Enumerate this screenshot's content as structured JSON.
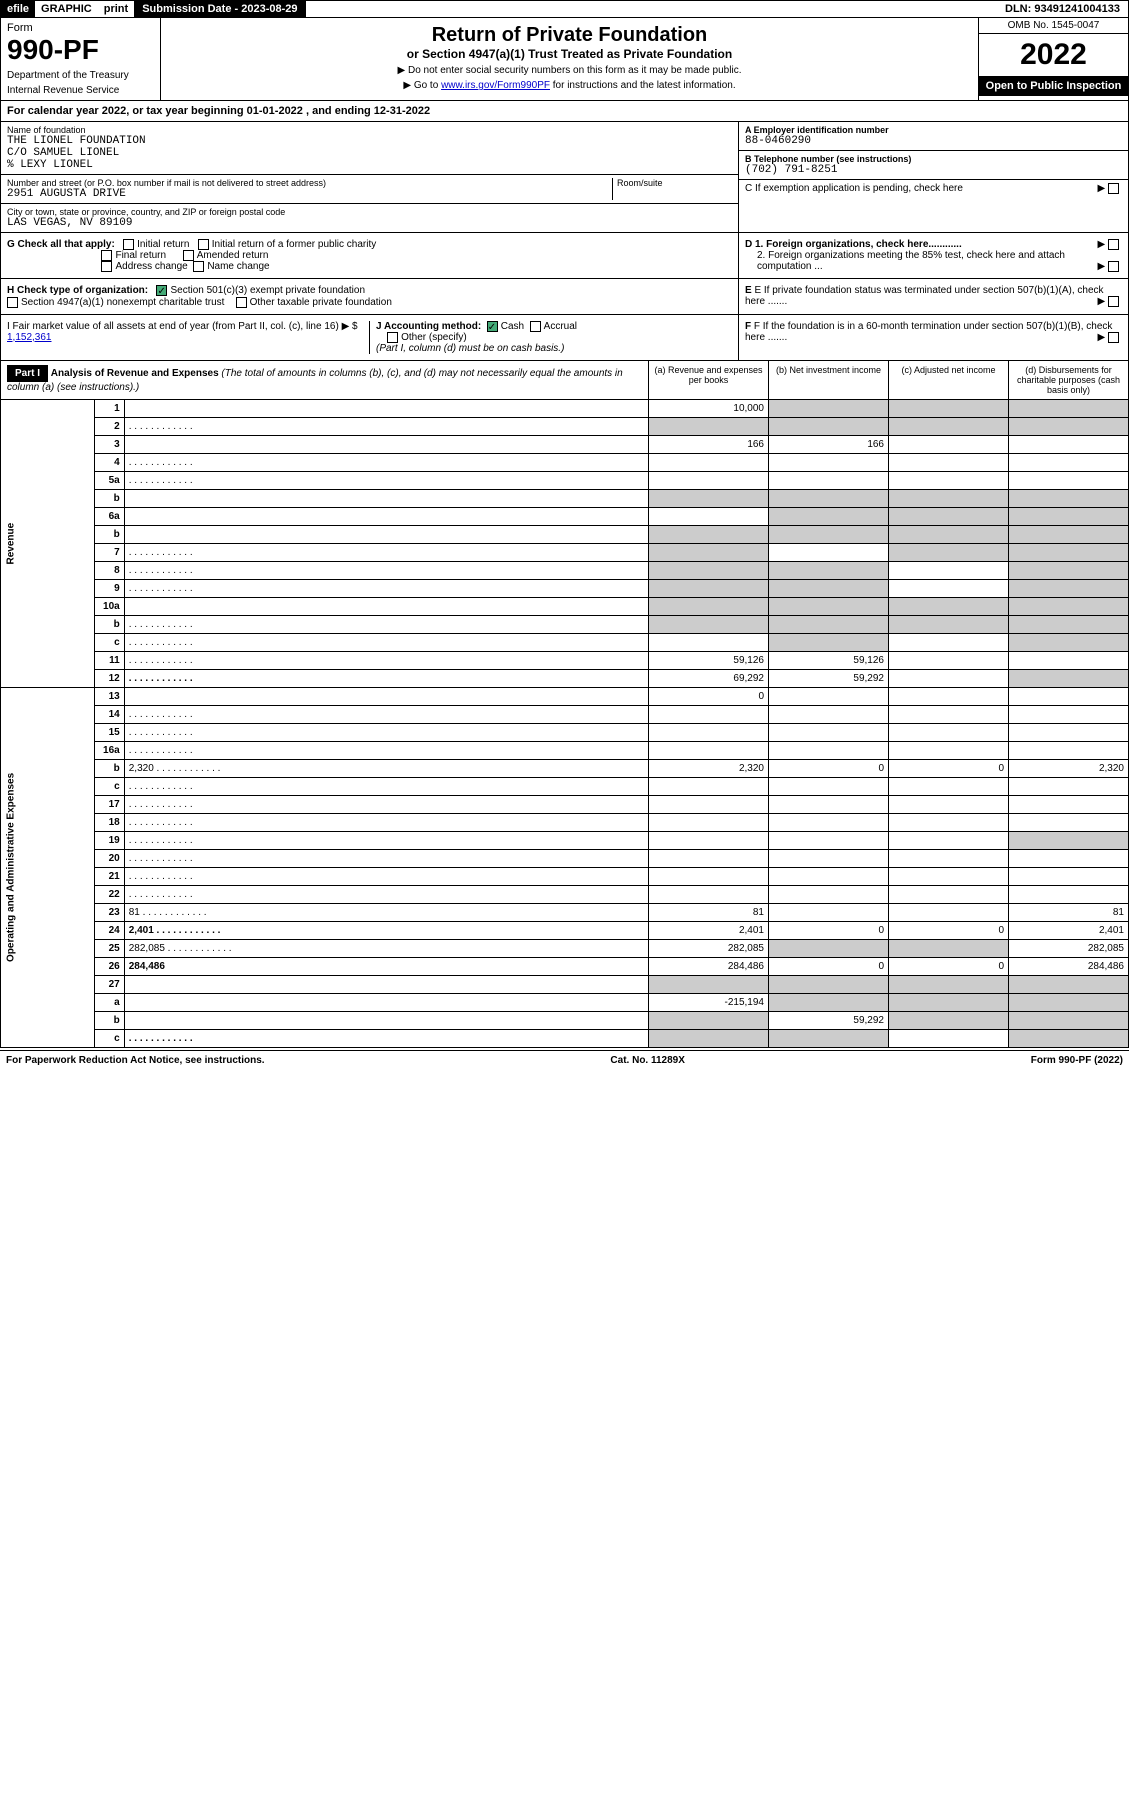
{
  "topbar": {
    "efile": "efile",
    "graphic": "GRAPHIC",
    "print": "print",
    "subdate_label": "Submission Date - 2023-08-29",
    "dln": "DLN: 93491241004133"
  },
  "header": {
    "form": "Form",
    "form_no": "990-PF",
    "dept": "Department of the Treasury",
    "irs": "Internal Revenue Service",
    "title": "Return of Private Foundation",
    "subtitle": "or Section 4947(a)(1) Trust Treated as Private Foundation",
    "note1": "▶ Do not enter social security numbers on this form as it may be made public.",
    "note2": "▶ Go to www.irs.gov/Form990PF for instructions and the latest information.",
    "omb": "OMB No. 1545-0047",
    "year": "2022",
    "open": "Open to Public Inspection"
  },
  "calyear": "For calendar year 2022, or tax year beginning 01-01-2022               , and ending 12-31-2022",
  "foundation": {
    "name_label": "Name of foundation",
    "name": "THE LIONEL FOUNDATION\nC/O SAMUEL LIONEL\n% LEXY LIONEL",
    "addr_label": "Number and street (or P.O. box number if mail is not delivered to street address)",
    "addr": "2951 AUGUSTA DRIVE",
    "room_label": "Room/suite",
    "city_label": "City or town, state or province, country, and ZIP or foreign postal code",
    "city": "LAS VEGAS, NV  89109",
    "ein_label": "A Employer identification number",
    "ein": "88-0460290",
    "phone_label": "B Telephone number (see instructions)",
    "phone": "(702) 791-8251",
    "c_label": "C If exemption application is pending, check here"
  },
  "checks": {
    "g_label": "G Check all that apply:",
    "g_initial": "Initial return",
    "g_initial_former": "Initial return of a former public charity",
    "g_final": "Final return",
    "g_amended": "Amended return",
    "g_addr": "Address change",
    "g_name": "Name change",
    "h_label": "H Check type of organization:",
    "h_501c3": "Section 501(c)(3) exempt private foundation",
    "h_4947": "Section 4947(a)(1) nonexempt charitable trust",
    "h_other": "Other taxable private foundation",
    "i_label": "I Fair market value of all assets at end of year (from Part II, col. (c), line 16) ▶ $",
    "i_value": "1,152,361",
    "j_label": "J Accounting method:",
    "j_cash": "Cash",
    "j_accrual": "Accrual",
    "j_other": "Other (specify)",
    "j_note": "(Part I, column (d) must be on cash basis.)",
    "d1": "D 1. Foreign organizations, check here............",
    "d2": "2. Foreign organizations meeting the 85% test, check here and attach computation ...",
    "e": "E  If private foundation status was terminated under section 507(b)(1)(A), check here .......",
    "f": "F  If the foundation is in a 60-month termination under section 507(b)(1)(B), check here ......."
  },
  "part1": {
    "label": "Part I",
    "title": "Analysis of Revenue and Expenses",
    "title_note": "(The total of amounts in columns (b), (c), and (d) may not necessarily equal the amounts in column (a) (see instructions).)",
    "col_a": "(a)  Revenue and expenses per books",
    "col_b": "(b)  Net investment income",
    "col_c": "(c)  Adjusted net income",
    "col_d": "(d)  Disbursements for charitable purposes (cash basis only)"
  },
  "sections": {
    "revenue": "Revenue",
    "opadmin": "Operating and Administrative Expenses"
  },
  "rows": [
    {
      "n": "1",
      "d": "",
      "a": "10,000",
      "b": "",
      "c": "",
      "shade": [
        "b",
        "c",
        "d"
      ]
    },
    {
      "n": "2",
      "d": "",
      "a": "",
      "b": "",
      "c": "",
      "dots": true,
      "shade": [
        "a",
        "b",
        "c",
        "d"
      ]
    },
    {
      "n": "3",
      "d": "",
      "a": "166",
      "b": "166",
      "c": ""
    },
    {
      "n": "4",
      "d": "",
      "a": "",
      "b": "",
      "c": "",
      "dots": true
    },
    {
      "n": "5a",
      "d": "",
      "a": "",
      "b": "",
      "c": "",
      "dots": true
    },
    {
      "n": "b",
      "d": "",
      "a": "",
      "b": "",
      "c": "",
      "shade": [
        "a",
        "b",
        "c",
        "d"
      ]
    },
    {
      "n": "6a",
      "d": "",
      "a": "",
      "b": "",
      "c": "",
      "shade": [
        "b",
        "c",
        "d"
      ]
    },
    {
      "n": "b",
      "d": "",
      "a": "",
      "b": "",
      "c": "",
      "shade": [
        "a",
        "b",
        "c",
        "d"
      ]
    },
    {
      "n": "7",
      "d": "",
      "a": "",
      "b": "",
      "c": "",
      "dots": true,
      "shade": [
        "a",
        "c",
        "d"
      ]
    },
    {
      "n": "8",
      "d": "",
      "a": "",
      "b": "",
      "c": "",
      "dots": true,
      "shade": [
        "a",
        "b",
        "d"
      ]
    },
    {
      "n": "9",
      "d": "",
      "a": "",
      "b": "",
      "c": "",
      "dots": true,
      "shade": [
        "a",
        "b",
        "d"
      ]
    },
    {
      "n": "10a",
      "d": "",
      "a": "",
      "b": "",
      "c": "",
      "shade": [
        "a",
        "b",
        "c",
        "d"
      ]
    },
    {
      "n": "b",
      "d": "",
      "a": "",
      "b": "",
      "c": "",
      "dots": true,
      "shade": [
        "a",
        "b",
        "c",
        "d"
      ]
    },
    {
      "n": "c",
      "d": "",
      "a": "",
      "b": "",
      "c": "",
      "dots": true,
      "shade": [
        "b",
        "d"
      ]
    },
    {
      "n": "11",
      "d": "",
      "a": "59,126",
      "b": "59,126",
      "c": "",
      "dots": true
    },
    {
      "n": "12",
      "d": "",
      "a": "69,292",
      "b": "59,292",
      "c": "",
      "dots": true,
      "bold": true,
      "shade": [
        "d"
      ]
    },
    {
      "n": "13",
      "d": "",
      "a": "0",
      "b": "",
      "c": ""
    },
    {
      "n": "14",
      "d": "",
      "a": "",
      "b": "",
      "c": "",
      "dots": true
    },
    {
      "n": "15",
      "d": "",
      "a": "",
      "b": "",
      "c": "",
      "dots": true
    },
    {
      "n": "16a",
      "d": "",
      "a": "",
      "b": "",
      "c": "",
      "dots": true
    },
    {
      "n": "b",
      "d": "2,320",
      "a": "2,320",
      "b": "0",
      "c": "0",
      "dots": true
    },
    {
      "n": "c",
      "d": "",
      "a": "",
      "b": "",
      "c": "",
      "dots": true
    },
    {
      "n": "17",
      "d": "",
      "a": "",
      "b": "",
      "c": "",
      "dots": true
    },
    {
      "n": "18",
      "d": "",
      "a": "",
      "b": "",
      "c": "",
      "dots": true
    },
    {
      "n": "19",
      "d": "",
      "a": "",
      "b": "",
      "c": "",
      "dots": true,
      "shade": [
        "d"
      ]
    },
    {
      "n": "20",
      "d": "",
      "a": "",
      "b": "",
      "c": "",
      "dots": true
    },
    {
      "n": "21",
      "d": "",
      "a": "",
      "b": "",
      "c": "",
      "dots": true
    },
    {
      "n": "22",
      "d": "",
      "a": "",
      "b": "",
      "c": "",
      "dots": true
    },
    {
      "n": "23",
      "d": "81",
      "a": "81",
      "b": "",
      "c": "",
      "dots": true
    },
    {
      "n": "24",
      "d": "2,401",
      "a": "2,401",
      "b": "0",
      "c": "0",
      "dots": true,
      "bold": true
    },
    {
      "n": "25",
      "d": "282,085",
      "a": "282,085",
      "b": "",
      "c": "",
      "dots": true,
      "shade": [
        "b",
        "c"
      ]
    },
    {
      "n": "26",
      "d": "284,486",
      "a": "284,486",
      "b": "0",
      "c": "0",
      "bold": true
    },
    {
      "n": "27",
      "d": "",
      "a": "",
      "b": "",
      "c": "",
      "shade": [
        "a",
        "b",
        "c",
        "d"
      ]
    },
    {
      "n": "a",
      "d": "",
      "a": "-215,194",
      "b": "",
      "c": "",
      "bold": true,
      "shade": [
        "b",
        "c",
        "d"
      ]
    },
    {
      "n": "b",
      "d": "",
      "a": "",
      "b": "59,292",
      "c": "",
      "bold": true,
      "shade": [
        "a",
        "c",
        "d"
      ]
    },
    {
      "n": "c",
      "d": "",
      "a": "",
      "b": "",
      "c": "",
      "dots": true,
      "bold": true,
      "shade": [
        "a",
        "b",
        "d"
      ]
    }
  ],
  "footer": {
    "pra": "For Paperwork Reduction Act Notice, see instructions.",
    "cat": "Cat. No. 11289X",
    "form": "Form 990-PF (2022)"
  }
}
